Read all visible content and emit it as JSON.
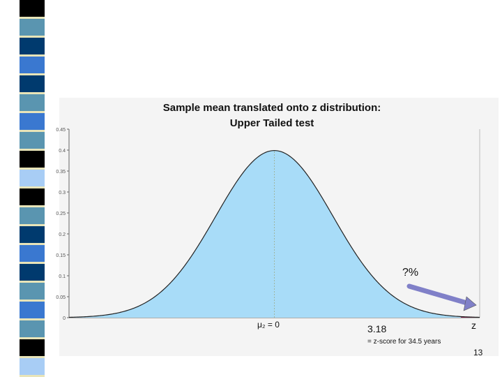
{
  "slide": {
    "page_number": "13",
    "stripe_colors": [
      "#000000",
      "#5a95b0",
      "#003a6e",
      "#3a78d0",
      "#003a6e",
      "#5a95b0",
      "#3a78d0",
      "#5a95b0",
      "#000000",
      "#a8cdf5"
    ]
  },
  "chart_data": {
    "type": "area",
    "title": "Sample mean translated onto z distribution:",
    "subtitle": "Upper Tailed test",
    "xlabel": "z",
    "ylabel": "",
    "distribution": "standard normal",
    "xlim": [
      -3.5,
      3.5
    ],
    "ylim": [
      0,
      0.45
    ],
    "y_ticks": [
      0,
      0.05,
      0.1,
      0.15,
      0.2,
      0.25,
      0.3,
      0.35,
      0.4,
      0.45
    ],
    "y_tick_labels": [
      "0",
      "0.05",
      "0.1",
      "0.15",
      "0.2",
      "0.25",
      "0.3",
      "0.35",
      "0.4",
      "0.45"
    ],
    "peak": {
      "x": 0,
      "y": 0.399
    },
    "critical_z": 3.18,
    "tail": "upper",
    "colors": {
      "body": "#a8dcf8",
      "tail": "#8b1f4e",
      "curve": "#222222",
      "mean_line": "#9fb6a0",
      "arrow": "#8080c8"
    },
    "annotations": {
      "mean_label": "μ₂ = 0",
      "critical_value_label": "3.18",
      "critical_note": "= z-score for 34.5 years",
      "tail_area_label": "?%"
    }
  }
}
